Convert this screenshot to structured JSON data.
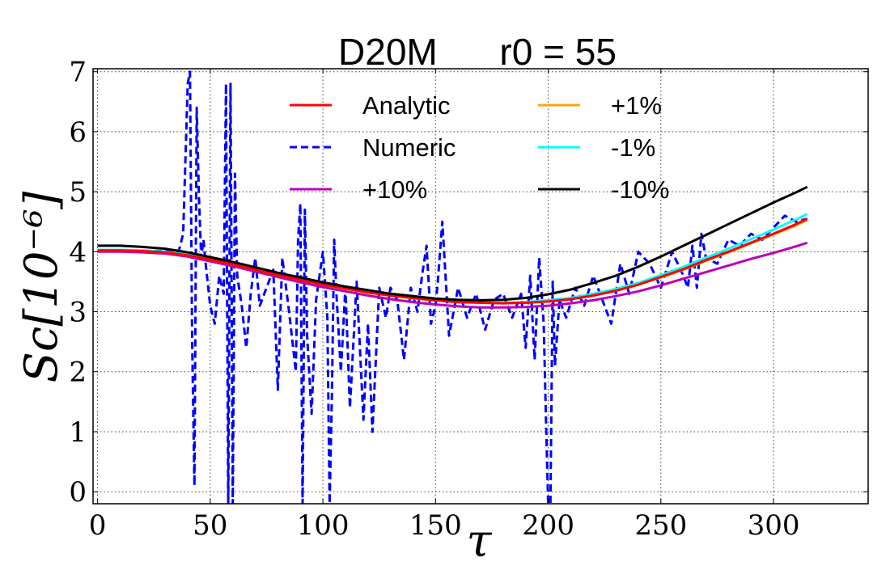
{
  "chart_data": {
    "type": "line",
    "title": "D20M      r0 = 55",
    "xlabel": "τ",
    "ylabel": "Sc[10⁻⁶]",
    "xlim": [
      -2,
      342
    ],
    "ylim": [
      -0.2,
      7.05
    ],
    "xticks": [
      "0",
      "50",
      "100",
      "150",
      "200",
      "250",
      "300"
    ],
    "yticks": [
      "0",
      "1",
      "2",
      "3",
      "4",
      "5",
      "6",
      "7"
    ],
    "grid": true,
    "legend": {
      "position": "top",
      "columns": 2
    },
    "series": [
      {
        "name": "Analytic",
        "color": "#ff0000",
        "style": "solid",
        "x": [
          0,
          10,
          20,
          30,
          40,
          50,
          60,
          70,
          80,
          90,
          100,
          110,
          120,
          130,
          140,
          150,
          160,
          170,
          180,
          190,
          200,
          210,
          220,
          230,
          240,
          250,
          260,
          270,
          280,
          290,
          300,
          310,
          315
        ],
        "y": [
          4.02,
          4.02,
          4.01,
          3.99,
          3.94,
          3.87,
          3.79,
          3.7,
          3.61,
          3.53,
          3.45,
          3.39,
          3.32,
          3.27,
          3.23,
          3.19,
          3.16,
          3.15,
          3.14,
          3.15,
          3.17,
          3.21,
          3.27,
          3.35,
          3.45,
          3.58,
          3.71,
          3.86,
          4.0,
          4.15,
          4.3,
          4.46,
          4.55
        ]
      },
      {
        "name": "Numeric",
        "color": "#0000ff",
        "style": "dashed",
        "x": [
          0,
          10,
          20,
          30,
          36,
          38,
          40,
          41,
          42,
          43,
          44,
          45,
          46,
          47,
          48,
          50,
          52,
          54,
          56,
          57,
          58,
          59,
          60,
          61,
          62,
          64,
          66,
          68,
          70,
          72,
          75,
          78,
          80,
          82,
          85,
          88,
          89,
          90,
          91,
          92,
          93,
          95,
          97,
          100,
          102,
          103,
          104,
          105,
          106,
          108,
          110,
          112,
          115,
          118,
          120,
          122,
          125,
          128,
          130,
          133,
          136,
          139,
          142,
          144,
          146,
          148,
          150,
          151,
          153,
          156,
          160,
          164,
          168,
          172,
          176,
          180,
          184,
          188,
          190,
          192,
          194,
          196,
          198,
          199,
          200,
          201,
          202,
          203,
          205,
          208,
          212,
          216,
          220,
          224,
          228,
          232,
          236,
          240,
          245,
          250,
          255,
          260,
          262,
          264,
          266,
          268,
          270,
          275,
          280,
          285,
          290,
          295,
          300,
          305,
          310,
          315
        ],
        "y": [
          4.02,
          4.02,
          4.02,
          4.01,
          4.0,
          4.3,
          6.8,
          7.0,
          2.5,
          0.1,
          6.4,
          4.9,
          3.9,
          4.2,
          3.8,
          3.1,
          2.8,
          3.6,
          3.3,
          6.8,
          -0.2,
          6.8,
          -0.2,
          5.3,
          3.6,
          3.1,
          2.4,
          3.3,
          3.9,
          3.1,
          3.4,
          3.7,
          1.7,
          3.9,
          3.0,
          2.0,
          4.2,
          4.8,
          -0.2,
          4.7,
          2.6,
          1.3,
          3.2,
          4.0,
          2.9,
          -0.2,
          1.6,
          4.2,
          3.3,
          2.0,
          3.4,
          1.4,
          3.5,
          1.2,
          2.8,
          1.0,
          3.4,
          2.9,
          3.4,
          3.2,
          2.2,
          3.4,
          3.0,
          3.6,
          4.1,
          2.8,
          3.1,
          3.5,
          4.5,
          2.6,
          3.4,
          2.9,
          3.3,
          2.7,
          3.2,
          3.3,
          2.9,
          3.3,
          2.4,
          3.6,
          2.2,
          3.9,
          2.8,
          1.2,
          -0.2,
          -0.2,
          3.5,
          2.1,
          3.2,
          2.9,
          3.4,
          3.1,
          3.6,
          3.2,
          2.8,
          3.8,
          3.3,
          4.0,
          3.8,
          3.4,
          4.0,
          3.6,
          3.4,
          4.1,
          3.4,
          4.3,
          3.9,
          3.8,
          4.2,
          4.1,
          4.3,
          4.2,
          4.4,
          4.6,
          4.5,
          4.55
        ]
      },
      {
        "name": "+10%",
        "color": "#bb00bb",
        "style": "solid",
        "x": [
          0,
          10,
          20,
          30,
          40,
          50,
          60,
          70,
          80,
          90,
          100,
          110,
          120,
          130,
          140,
          150,
          160,
          170,
          180,
          190,
          200,
          210,
          220,
          230,
          240,
          250,
          260,
          270,
          280,
          290,
          300,
          310,
          315
        ],
        "y": [
          4.0,
          4.0,
          3.99,
          3.97,
          3.92,
          3.84,
          3.76,
          3.67,
          3.58,
          3.49,
          3.41,
          3.34,
          3.27,
          3.21,
          3.16,
          3.12,
          3.09,
          3.07,
          3.07,
          3.08,
          3.1,
          3.14,
          3.19,
          3.26,
          3.34,
          3.44,
          3.55,
          3.66,
          3.77,
          3.88,
          3.98,
          4.09,
          4.15
        ]
      },
      {
        "name": "+1%",
        "color": "#ffa500",
        "style": "solid",
        "x": [
          0,
          10,
          20,
          30,
          40,
          50,
          60,
          70,
          80,
          90,
          100,
          110,
          120,
          130,
          140,
          150,
          160,
          170,
          180,
          190,
          200,
          210,
          220,
          230,
          240,
          250,
          260,
          270,
          280,
          290,
          300,
          310,
          315
        ],
        "y": [
          4.02,
          4.02,
          4.01,
          3.99,
          3.94,
          3.87,
          3.79,
          3.7,
          3.61,
          3.53,
          3.45,
          3.38,
          3.32,
          3.27,
          3.22,
          3.19,
          3.16,
          3.15,
          3.14,
          3.15,
          3.17,
          3.21,
          3.27,
          3.35,
          3.45,
          3.57,
          3.7,
          3.85,
          3.99,
          4.14,
          4.29,
          4.44,
          4.53
        ]
      },
      {
        "name": "-1%",
        "color": "#00ffff",
        "style": "solid",
        "x": [
          0,
          10,
          20,
          30,
          40,
          50,
          60,
          70,
          80,
          90,
          100,
          110,
          120,
          130,
          140,
          150,
          160,
          170,
          180,
          190,
          200,
          210,
          220,
          230,
          240,
          250,
          260,
          270,
          280,
          290,
          300,
          310,
          315
        ],
        "y": [
          4.03,
          4.03,
          4.02,
          4.0,
          3.95,
          3.88,
          3.8,
          3.71,
          3.62,
          3.54,
          3.46,
          3.4,
          3.33,
          3.28,
          3.24,
          3.2,
          3.17,
          3.16,
          3.15,
          3.16,
          3.19,
          3.23,
          3.3,
          3.38,
          3.48,
          3.61,
          3.75,
          3.9,
          4.05,
          4.21,
          4.37,
          4.54,
          4.63
        ]
      },
      {
        "name": "-10%",
        "color": "#000000",
        "style": "solid",
        "x": [
          0,
          10,
          20,
          30,
          40,
          50,
          60,
          70,
          80,
          90,
          100,
          110,
          120,
          130,
          140,
          150,
          160,
          170,
          180,
          190,
          200,
          210,
          220,
          230,
          240,
          250,
          260,
          270,
          280,
          290,
          300,
          310,
          315
        ],
        "y": [
          4.1,
          4.1,
          4.08,
          4.05,
          3.99,
          3.91,
          3.83,
          3.74,
          3.65,
          3.57,
          3.49,
          3.42,
          3.36,
          3.3,
          3.26,
          3.22,
          3.2,
          3.19,
          3.2,
          3.23,
          3.29,
          3.37,
          3.48,
          3.6,
          3.75,
          3.92,
          4.1,
          4.28,
          4.46,
          4.64,
          4.82,
          4.99,
          5.08
        ]
      }
    ]
  }
}
